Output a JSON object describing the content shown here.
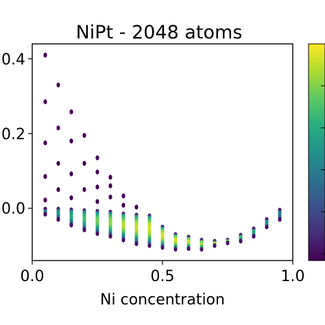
{
  "chart_data": {
    "type": "scatter",
    "title": "NiPt - 2048 atoms",
    "xlabel": "Ni concentration",
    "ylabel": "",
    "xlim": [
      0.0,
      1.0
    ],
    "ylim": [
      -0.14,
      0.44
    ],
    "x_ticks": [
      {
        "value": 0.0,
        "label": "0.0"
      },
      {
        "value": 0.5,
        "label": "0.5"
      },
      {
        "value": 1.0,
        "label": "1.0"
      }
    ],
    "y_ticks": [
      {
        "value": 0.0,
        "label": "0.0"
      },
      {
        "value": 0.2,
        "label": "0.2"
      },
      {
        "value": 0.4,
        "label": "0.4"
      }
    ],
    "colormap": "viridis",
    "colorbar": true,
    "colorbar_tick_count": 6,
    "grid": false,
    "columns": [
      {
        "x": 0.05,
        "outliers": [
          0.41,
          0.285,
          0.175,
          0.085,
          0.022
        ],
        "ymax": -0.002,
        "ymin": -0.016
      },
      {
        "x": 0.1,
        "outliers": [
          0.33,
          0.215,
          0.12,
          0.05
        ],
        "ymax": -0.002,
        "ymin": -0.03
      },
      {
        "x": 0.15,
        "outliers": [
          0.258,
          0.18,
          0.092,
          0.028
        ],
        "ymax": -0.004,
        "ymin": -0.045
      },
      {
        "x": 0.2,
        "outliers": [
          0.195,
          0.12,
          0.05
        ],
        "ymax": -0.006,
        "ymin": -0.058
      },
      {
        "x": 0.25,
        "outliers": [
          0.135,
          0.097,
          0.057,
          0.018
        ],
        "ymax": -0.008,
        "ymin": -0.068
      },
      {
        "x": 0.3,
        "outliers": [
          0.083,
          0.06,
          0.03
        ],
        "ymax": -0.01,
        "ymin": -0.075
      },
      {
        "x": 0.35,
        "outliers": [
          0.033,
          0.008
        ],
        "ymax": -0.015,
        "ymin": -0.085
      },
      {
        "x": 0.4,
        "outliers": [
          0.003
        ],
        "ymax": -0.018,
        "ymin": -0.095
      },
      {
        "x": 0.45,
        "outliers": [],
        "ymax": -0.02,
        "ymin": -0.1
      },
      {
        "x": 0.5,
        "outliers": [],
        "ymax": -0.05,
        "ymin": -0.105
      },
      {
        "x": 0.55,
        "outliers": [],
        "ymax": -0.07,
        "ymin": -0.11
      },
      {
        "x": 0.6,
        "outliers": [],
        "ymax": -0.077,
        "ymin": -0.108
      },
      {
        "x": 0.65,
        "outliers": [],
        "ymax": -0.085,
        "ymin": -0.11
      },
      {
        "x": 0.7,
        "outliers": [],
        "ymax": -0.088,
        "ymin": -0.1
      },
      {
        "x": 0.75,
        "outliers": [],
        "ymax": -0.085,
        "ymin": -0.093
      },
      {
        "x": 0.8,
        "outliers": [],
        "ymax": -0.072,
        "ymin": -0.088
      },
      {
        "x": 0.85,
        "outliers": [],
        "ymax": -0.055,
        "ymin": -0.075
      },
      {
        "x": 0.9,
        "outliers": [],
        "ymax": -0.03,
        "ymin": -0.05
      },
      {
        "x": 0.95,
        "outliers": [],
        "ymax": -0.005,
        "ymin": -0.03
      }
    ]
  }
}
